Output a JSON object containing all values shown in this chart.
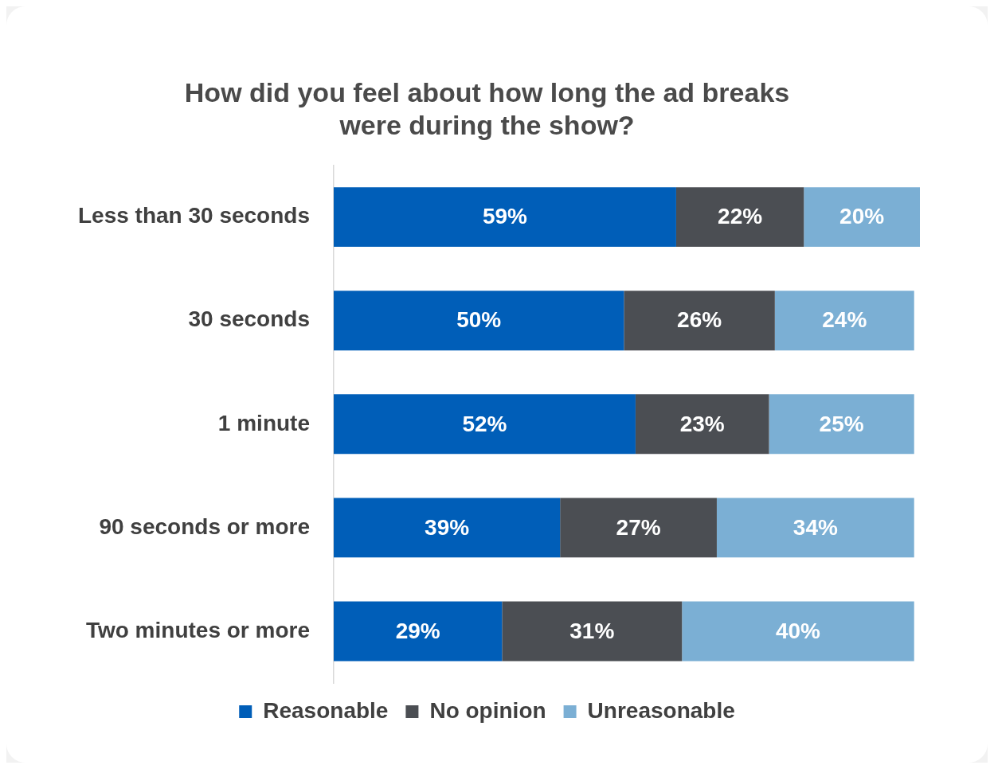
{
  "chart_data": {
    "type": "bar",
    "title": "How did you feel about how long the ad breaks\nwere during the show?",
    "orientation": "horizontal",
    "stacked": true,
    "legend": "bottom",
    "categories": [
      "Less than 30 seconds",
      "30 seconds",
      "1 minute",
      "90 seconds or more",
      "Two minutes or more"
    ],
    "series": [
      {
        "name": "Reasonable",
        "color": "#005eb8",
        "values": [
          59,
          50,
          52,
          39,
          29
        ],
        "value_labels": [
          "59%",
          "50%",
          "52%",
          "39%",
          "29%"
        ]
      },
      {
        "name": "No opinion",
        "color": "#4b4e53",
        "values": [
          22,
          26,
          23,
          27,
          31
        ],
        "value_labels": [
          "22%",
          "26%",
          "23%",
          "27%",
          "31%"
        ]
      },
      {
        "name": "Unreasonable",
        "color": "#7bafd4",
        "values": [
          20,
          24,
          25,
          34,
          40
        ],
        "value_labels": [
          "20%",
          "24%",
          "25%",
          "34%",
          "40%"
        ]
      }
    ]
  }
}
